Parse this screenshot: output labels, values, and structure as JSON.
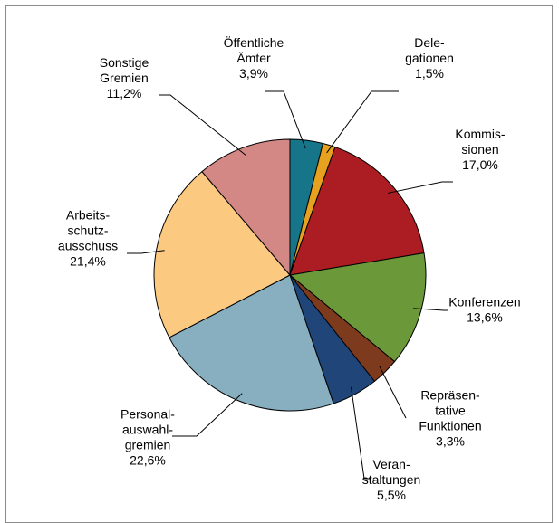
{
  "chart_data": {
    "type": "pie",
    "unit": "%",
    "slices": [
      {
        "label": "Öffentliche Ämter",
        "label_lines": [
          "Öffentliche",
          "Ämter",
          "3,9%"
        ],
        "value": 3.9,
        "color": "#17758a"
      },
      {
        "label": "Delegationen",
        "label_lines": [
          "Dele-",
          "gationen",
          "1,5%"
        ],
        "value": 1.5,
        "color": "#e6a11e"
      },
      {
        "label": "Kommissionen",
        "label_lines": [
          "Kommis-",
          "sionen",
          "17,0%"
        ],
        "value": 17.0,
        "color": "#ab1d23"
      },
      {
        "label": "Konferenzen",
        "label_lines": [
          "Konferenzen",
          "13,6%"
        ],
        "value": 13.6,
        "color": "#6b993a"
      },
      {
        "label": "Repräsentative Funktionen",
        "label_lines": [
          "Repräsen-",
          "tative",
          "Funktionen",
          "3,3%"
        ],
        "value": 3.3,
        "color": "#7e3a1d"
      },
      {
        "label": "Veranstaltungen",
        "label_lines": [
          "Veran-",
          "staltungen",
          "5,5%"
        ],
        "value": 5.5,
        "color": "#1f4579"
      },
      {
        "label": "Personalauswahlgremien",
        "label_lines": [
          "Personal-",
          "auswahl-",
          "gremien",
          "22,6%"
        ],
        "value": 22.6,
        "color": "#87afbf"
      },
      {
        "label": "Arbeitsschutzausschuss",
        "label_lines": [
          "Arbeits-",
          "schutz-",
          "ausschuss",
          "21,4%"
        ],
        "value": 21.4,
        "color": "#fbc97f"
      },
      {
        "label": "Sonstige Gremien",
        "label_lines": [
          "Sonstige",
          "Gremien",
          "11,2%"
        ],
        "value": 11.2,
        "color": "#d38886"
      }
    ]
  }
}
